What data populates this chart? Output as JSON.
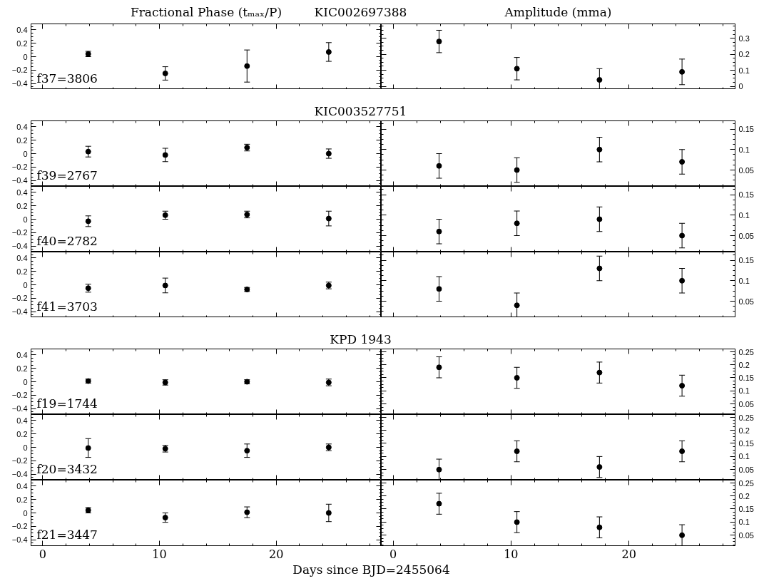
{
  "chart_data": [
    {
      "type": "scatter",
      "title": "KIC002697388",
      "ylabel": "Fractional Phase (tₘₐₓ/P)",
      "annotations": [
        "f37=3806"
      ],
      "x": [
        3.9,
        10.5,
        17.5,
        24.5
      ],
      "series": [
        {
          "color": "#000000",
          "values": [
            0.04,
            -0.25,
            -0.14,
            0.07
          ],
          "errors": [
            0.04,
            0.1,
            0.24,
            0.14
          ]
        }
      ],
      "xlim": [
        -1,
        29
      ],
      "xticks": [
        0,
        10,
        20
      ],
      "ylim": [
        -0.49,
        0.49
      ],
      "yticks": [
        -0.4,
        -0.2,
        0,
        0.2,
        0.4
      ],
      "marker": "circle",
      "grid": false,
      "tick_labels": "y"
    },
    {
      "type": "scatter",
      "ylabel": "Amplitude (mma)",
      "x": [
        3.9,
        10.5,
        17.5,
        24.5
      ],
      "series": [
        {
          "color": "#000000",
          "values": [
            0.28,
            0.11,
            0.04,
            0.09
          ],
          "errors": [
            0.07,
            0.07,
            0.07,
            0.08
          ]
        }
      ],
      "xlim": [
        -1,
        29
      ],
      "xticks": [
        0,
        10,
        20
      ],
      "ylim": [
        -0.02,
        0.39
      ],
      "yticks": [
        0,
        0.1,
        0.2,
        0.3
      ],
      "marker": "circle",
      "grid": false,
      "tick_labels": "y"
    },
    {
      "type": "scatter",
      "title": "KIC003527751",
      "annotations": [
        "f39=2767"
      ],
      "x": [
        3.9,
        10.5,
        17.5,
        24.5
      ],
      "series": [
        {
          "color": "#000000",
          "values": [
            0.03,
            -0.02,
            0.09,
            0.0
          ],
          "errors": [
            0.08,
            0.1,
            0.05,
            0.07
          ]
        }
      ],
      "xlim": [
        -1,
        29
      ],
      "xticks": [
        0,
        10,
        20
      ],
      "ylim": [
        -0.49,
        0.49
      ],
      "yticks": [
        -0.4,
        -0.2,
        0,
        0.2,
        0.4
      ],
      "marker": "circle",
      "grid": false,
      "tick_labels": "y"
    },
    {
      "type": "scatter",
      "x": [
        3.9,
        10.5,
        17.5,
        24.5
      ],
      "series": [
        {
          "color": "#000000",
          "values": [
            0.06,
            0.05,
            0.1,
            0.07
          ],
          "errors": [
            0.03,
            0.03,
            0.03,
            0.03
          ]
        }
      ],
      "xlim": [
        -1,
        29
      ],
      "xticks": [
        0,
        10,
        20
      ],
      "ylim": [
        0.01,
        0.17
      ],
      "yticks": [
        0.05,
        0.1,
        0.15
      ],
      "marker": "circle",
      "grid": false,
      "tick_labels": "y"
    },
    {
      "type": "scatter",
      "annotations": [
        "f40=2782"
      ],
      "x": [
        3.9,
        10.5,
        17.5,
        24.5
      ],
      "series": [
        {
          "color": "#000000",
          "values": [
            -0.03,
            0.06,
            0.07,
            0.01
          ],
          "errors": [
            0.08,
            0.06,
            0.05,
            0.11
          ]
        }
      ],
      "xlim": [
        -1,
        29
      ],
      "xticks": [
        0,
        10,
        20
      ],
      "ylim": [
        -0.49,
        0.49
      ],
      "yticks": [
        -0.4,
        -0.2,
        0,
        0.2,
        0.4
      ],
      "marker": "circle",
      "grid": false,
      "tick_labels": "y"
    },
    {
      "type": "scatter",
      "x": [
        3.9,
        10.5,
        17.5,
        24.5
      ],
      "series": [
        {
          "color": "#000000",
          "values": [
            0.06,
            0.08,
            0.09,
            0.05
          ],
          "errors": [
            0.03,
            0.03,
            0.03,
            0.03
          ]
        }
      ],
      "xlim": [
        -1,
        29
      ],
      "xticks": [
        0,
        10,
        20
      ],
      "ylim": [
        0.01,
        0.17
      ],
      "yticks": [
        0.05,
        0.1,
        0.15
      ],
      "marker": "circle",
      "grid": false,
      "tick_labels": "y"
    },
    {
      "type": "scatter",
      "annotations": [
        "f41=3703"
      ],
      "x": [
        3.9,
        10.5,
        17.5,
        24.5
      ],
      "series": [
        {
          "color": "#000000",
          "values": [
            -0.05,
            -0.01,
            -0.07,
            -0.01
          ],
          "errors": [
            0.06,
            0.11,
            0.03,
            0.05
          ]
        }
      ],
      "xlim": [
        -1,
        29
      ],
      "xticks": [
        0,
        10,
        20
      ],
      "ylim": [
        -0.49,
        0.49
      ],
      "yticks": [
        -0.4,
        -0.2,
        0,
        0.2,
        0.4
      ],
      "marker": "circle",
      "grid": false,
      "tick_labels": "y"
    },
    {
      "type": "scatter",
      "x": [
        3.9,
        10.5,
        17.5,
        24.5
      ],
      "series": [
        {
          "color": "#000000",
          "values": [
            0.08,
            0.04,
            0.13,
            0.1
          ],
          "errors": [
            0.03,
            0.03,
            0.03,
            0.03
          ]
        }
      ],
      "xlim": [
        -1,
        29
      ],
      "xticks": [
        0,
        10,
        20
      ],
      "ylim": [
        0.01,
        0.17
      ],
      "yticks": [
        0.05,
        0.1,
        0.15
      ],
      "marker": "circle",
      "grid": false,
      "tick_labels": "y"
    },
    {
      "type": "scatter",
      "title": "KPD 1943",
      "annotations": [
        "f19=1744"
      ],
      "x": [
        3.9,
        10.5,
        17.5,
        24.5
      ],
      "series": [
        {
          "color": "#000000",
          "values": [
            0.01,
            -0.01,
            0.0,
            -0.01
          ],
          "errors": [
            0.03,
            0.04,
            0.03,
            0.05
          ]
        }
      ],
      "xlim": [
        -1,
        29
      ],
      "xticks": [
        0,
        10,
        20
      ],
      "ylim": [
        -0.49,
        0.49
      ],
      "yticks": [
        -0.4,
        -0.2,
        0,
        0.2,
        0.4
      ],
      "marker": "circle",
      "grid": false,
      "tick_labels": "y"
    },
    {
      "type": "scatter",
      "x": [
        3.9,
        10.5,
        17.5,
        24.5
      ],
      "series": [
        {
          "color": "#000000",
          "values": [
            0.19,
            0.15,
            0.17,
            0.12
          ],
          "errors": [
            0.04,
            0.04,
            0.04,
            0.04
          ]
        }
      ],
      "xlim": [
        -1,
        29
      ],
      "xticks": [
        0,
        10,
        20
      ],
      "ylim": [
        0.01,
        0.26
      ],
      "yticks": [
        0.05,
        0.1,
        0.15,
        0.2,
        0.25
      ],
      "marker": "circle",
      "grid": false,
      "tick_labels": "y"
    },
    {
      "type": "scatter",
      "annotations": [
        "f20=3432"
      ],
      "x": [
        3.9,
        10.5,
        17.5,
        24.5
      ],
      "series": [
        {
          "color": "#000000",
          "values": [
            -0.01,
            -0.02,
            -0.05,
            0.0
          ],
          "errors": [
            0.14,
            0.05,
            0.1,
            0.05
          ]
        }
      ],
      "xlim": [
        -1,
        29
      ],
      "xticks": [
        0,
        10,
        20
      ],
      "ylim": [
        -0.49,
        0.49
      ],
      "yticks": [
        -0.4,
        -0.2,
        0,
        0.2,
        0.4
      ],
      "marker": "circle",
      "grid": false,
      "tick_labels": "y"
    },
    {
      "type": "scatter",
      "x": [
        3.9,
        10.5,
        17.5,
        24.5
      ],
      "series": [
        {
          "color": "#000000",
          "values": [
            0.05,
            0.12,
            0.06,
            0.12
          ],
          "errors": [
            0.04,
            0.04,
            0.04,
            0.04
          ]
        }
      ],
      "xlim": [
        -1,
        29
      ],
      "xticks": [
        0,
        10,
        20
      ],
      "ylim": [
        0.01,
        0.26
      ],
      "yticks": [
        0.05,
        0.1,
        0.15,
        0.2,
        0.25
      ],
      "marker": "circle",
      "grid": false,
      "tick_labels": "y"
    },
    {
      "type": "scatter",
      "annotations": [
        "f21=3447"
      ],
      "xlabel": "Days since BJD=2455064",
      "x": [
        3.9,
        10.5,
        17.5,
        24.5
      ],
      "series": [
        {
          "color": "#000000",
          "values": [
            0.04,
            -0.07,
            0.01,
            0.0
          ],
          "errors": [
            0.04,
            0.07,
            0.08,
            0.13
          ]
        }
      ],
      "xlim": [
        -1,
        29
      ],
      "xticks": [
        0,
        10,
        20
      ],
      "ylim": [
        -0.49,
        0.49
      ],
      "yticks": [
        -0.4,
        -0.2,
        0,
        0.2,
        0.4
      ],
      "marker": "circle",
      "grid": false
    },
    {
      "type": "scatter",
      "x": [
        3.9,
        10.5,
        17.5,
        24.5
      ],
      "series": [
        {
          "color": "#000000",
          "values": [
            0.17,
            0.1,
            0.08,
            0.05
          ],
          "errors": [
            0.04,
            0.04,
            0.04,
            0.04
          ]
        }
      ],
      "xlim": [
        -1,
        29
      ],
      "xticks": [
        0,
        10,
        20
      ],
      "ylim": [
        0.01,
        0.26
      ],
      "yticks": [
        0.05,
        0.1,
        0.15,
        0.2,
        0.25
      ],
      "marker": "circle",
      "grid": false
    }
  ]
}
